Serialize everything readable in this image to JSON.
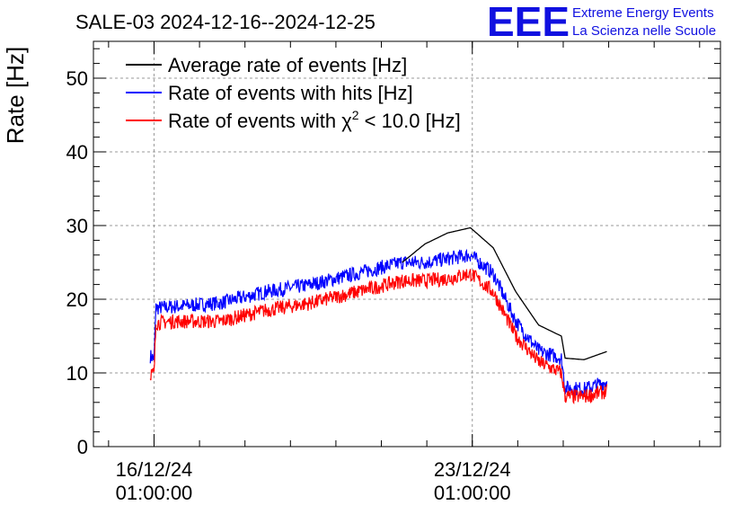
{
  "chart_data": {
    "type": "line",
    "title": "SALE-03 2024-12-16--2024-12-25",
    "ylabel": "Rate [Hz]",
    "xlabel": "",
    "ylim": [
      0,
      55
    ],
    "yticks": [
      0,
      10,
      20,
      30,
      40,
      50
    ],
    "xlim": [
      "2024-12-14 17:00:00",
      "2024-12-28 12:00:00"
    ],
    "xticks": [
      {
        "value": "2024-12-16 01:00:00",
        "line1": "16/12/24",
        "line2": "01:00:00"
      },
      {
        "value": "2024-12-23 01:00:00",
        "line1": "23/12/24",
        "line2": "01:00:00"
      }
    ],
    "grid": true,
    "legend_position": "top-left",
    "logo": {
      "mark": "EEE",
      "line1": "Extreme Energy Events",
      "line2": "La Scienza nelle Scuole",
      "color": "#1010e0"
    },
    "x": [
      "2024-12-15 23:00",
      "2024-12-16 01:00",
      "2024-12-16 02:00",
      "2024-12-16 12:00",
      "2024-12-17 12:00",
      "2024-12-18 12:00",
      "2024-12-19 12:00",
      "2024-12-20 12:00",
      "2024-12-21 12:00",
      "2024-12-22 00:00",
      "2024-12-22 12:00",
      "2024-12-23 00:00",
      "2024-12-23 12:00",
      "2024-12-24 00:00",
      "2024-12-24 12:00",
      "2024-12-25 00:00",
      "2024-12-25 02:00",
      "2024-12-25 12:00",
      "2024-12-26 00:00"
    ],
    "series": [
      {
        "name": "Average rate of events [Hz]",
        "color": "#000000",
        "noise": 0,
        "start_index": 8,
        "values": [
          null,
          null,
          null,
          null,
          null,
          null,
          null,
          null,
          25.0,
          27.5,
          29.0,
          29.7,
          27.0,
          21.0,
          16.5,
          15.0,
          12.0,
          11.8,
          12.9
        ]
      },
      {
        "name": "Rate of events with hits [Hz]",
        "color": "#0000ff",
        "noise": 1.0,
        "start_index": 0,
        "values": [
          12.3,
          12.0,
          18.8,
          19.0,
          19.5,
          21.0,
          22.0,
          23.5,
          25.0,
          25.0,
          25.5,
          26.0,
          23.5,
          17.0,
          13.0,
          12.0,
          8.0,
          7.8,
          8.8
        ]
      },
      {
        "name": "Rate of events with χ² < 10.0 [Hz]",
        "color": "#ff0000",
        "noise": 1.0,
        "start_index": 0,
        "values": [
          10.0,
          9.8,
          16.8,
          17.0,
          17.0,
          18.5,
          19.5,
          21.0,
          22.5,
          22.5,
          22.8,
          23.5,
          21.0,
          15.0,
          11.5,
          10.0,
          6.8,
          6.8,
          7.5
        ]
      }
    ]
  }
}
